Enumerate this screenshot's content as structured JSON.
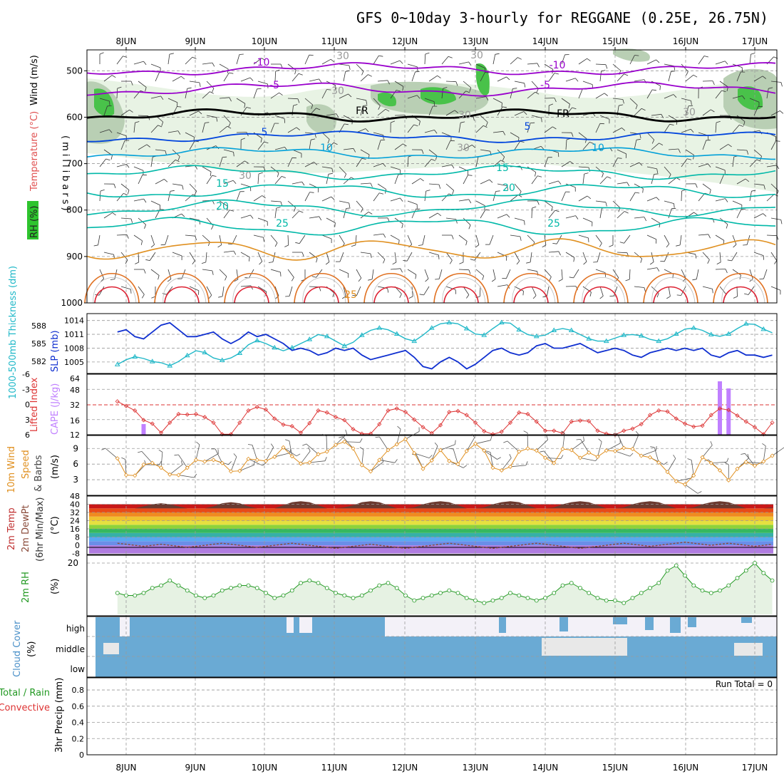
{
  "title": "GFS 0~10day 3-hourly for REGGANE (0.25E, 26.75N)",
  "date_labels": [
    "8JUN",
    "9JUN",
    "10JUN",
    "11JUN",
    "12JUN",
    "13JUN",
    "14JUN",
    "15JUN",
    "16JUN",
    "17JUN"
  ],
  "colors": {
    "temp_cold": "#9900cc",
    "temp_blue": "#0044dd",
    "temp_cyan": "#00a0d8",
    "temp_teal": "#00b8a8",
    "temp_orange": "#e09020",
    "temp_red": "#dd2233",
    "slp": "#1030d0",
    "thickness": "#20b8c8",
    "li": "#dd3333",
    "cape": "#c080ff",
    "wind10": "#e09020",
    "rh": "#229922",
    "rh_fill": "#e6f2e3",
    "cloud": "#6aaad4",
    "cloud_bg": "#f3f1f8",
    "cloud_gap": "#e8e8e8"
  },
  "upper_panel": {
    "ylabel_rh": "RH (%)",
    "ylabel_temp": "Temperature (°C)",
    "ylabel_wind": "Wind (m/s)",
    "ylabel_units": "(millibars)",
    "y_ticks": [
      "500",
      "600",
      "700",
      "800",
      "900",
      "1000"
    ],
    "contour_labels": [
      {
        "text": "-10",
        "color": "#9900cc"
      },
      {
        "text": "-10",
        "color": "#9900cc"
      },
      {
        "text": "-5",
        "color": "#9900cc"
      },
      {
        "text": "-5",
        "color": "#9900cc"
      },
      {
        "text": "FR",
        "color": "#000000"
      },
      {
        "text": "FR",
        "color": "#000000"
      },
      {
        "text": "5",
        "color": "#0044dd"
      },
      {
        "text": "5",
        "color": "#0044dd"
      },
      {
        "text": "10",
        "color": "#00a0d8"
      },
      {
        "text": "10",
        "color": "#00a0d8"
      },
      {
        "text": "15",
        "color": "#00b8a8"
      },
      {
        "text": "15",
        "color": "#00b8a8"
      },
      {
        "text": "20",
        "color": "#00b8a8"
      },
      {
        "text": "20",
        "color": "#00b8a8"
      },
      {
        "text": "25",
        "color": "#00b8a8"
      },
      {
        "text": "25",
        "color": "#00b8a8"
      },
      {
        "text": "25",
        "color": "#e09020"
      },
      {
        "text": "30",
        "color": "#999999"
      },
      {
        "text": "30",
        "color": "#999999"
      },
      {
        "text": "30",
        "color": "#999999"
      },
      {
        "text": "30",
        "color": "#999999"
      },
      {
        "text": "30",
        "color": "#999999"
      },
      {
        "text": "30",
        "color": "#999999"
      },
      {
        "text": "30",
        "color": "#999999"
      }
    ]
  },
  "slp_panel": {
    "ylabel_thickness": "1000-500mb Thickness (dm)",
    "ylabel_slp": "SLP (mb)",
    "left_ticks": [
      "588",
      "585",
      "582"
    ],
    "right_ticks": [
      "1014",
      "1011",
      "1008",
      "1005"
    ]
  },
  "cape_panel": {
    "ylabel_li": "Lifted Index",
    "ylabel_cape": "CAPE (J/kg)",
    "left_ticks": [
      "-6",
      "-3",
      "0",
      "3",
      "6"
    ],
    "right_ticks": [
      "64",
      "48",
      "32",
      "16",
      "12"
    ]
  },
  "wind_panel": {
    "ylabel_1": "10m Wind",
    "ylabel_2": "Speed",
    "ylabel_3": "& Barbs",
    "ylabel_units": "(m/s)",
    "y_ticks": [
      "9",
      "6",
      "3"
    ]
  },
  "temp_panel": {
    "ylabel_1": "2m Temp",
    "ylabel_2": "2m DewPt",
    "ylabel_3": "(6hr Min/Max)",
    "ylabel_units": "(°C)",
    "y_ticks": [
      "48",
      "40",
      "32",
      "24",
      "16",
      "8",
      "0",
      "-8"
    ]
  },
  "rh_panel": {
    "ylabel": "2m RH",
    "ylabel_units": "(%)",
    "y_ticks": [
      "20"
    ]
  },
  "cloud_panel": {
    "ylabel": "Cloud Cover",
    "ylabel_units": "(%)",
    "level_labels": [
      "high",
      "middle",
      "low"
    ]
  },
  "precip_panel": {
    "ylabel_1": "Total / Rain",
    "ylabel_2": "Convective",
    "ylabel_3": "3hr Precip (mm)",
    "y_ticks": [
      "0.8",
      "0.6",
      "0.4",
      "0.2",
      "0"
    ],
    "run_total": "Run Total = 0"
  },
  "chart_data": {
    "type": "line",
    "x": [
      "07JUN21",
      "08JUN00",
      "08JUN03",
      "08JUN06",
      "08JUN09",
      "08JUN12",
      "08JUN15",
      "08JUN18",
      "08JUN21",
      "09JUN00",
      "09JUN03",
      "09JUN06",
      "09JUN09",
      "09JUN12",
      "09JUN15",
      "09JUN18",
      "09JUN21",
      "10JUN00",
      "10JUN03",
      "10JUN06",
      "10JUN09",
      "10JUN12",
      "10JUN15",
      "10JUN18",
      "10JUN21",
      "11JUN00",
      "11JUN03",
      "11JUN06",
      "11JUN09",
      "11JUN12",
      "11JUN15",
      "11JUN18",
      "11JUN21",
      "12JUN00",
      "12JUN03",
      "12JUN06",
      "12JUN09",
      "12JUN12",
      "12JUN15",
      "12JUN18",
      "12JUN21",
      "13JUN00",
      "13JUN03",
      "13JUN06",
      "13JUN09",
      "13JUN12",
      "13JUN15",
      "13JUN18",
      "13JUN21",
      "14JUN00",
      "14JUN03",
      "14JUN06",
      "14JUN09",
      "14JUN12",
      "14JUN15",
      "14JUN18",
      "14JUN21",
      "15JUN00",
      "15JUN03",
      "15JUN06",
      "15JUN09",
      "15JUN12",
      "15JUN15",
      "15JUN18",
      "15JUN21",
      "16JUN00",
      "16JUN03",
      "16JUN06",
      "16JUN09",
      "16JUN12",
      "16JUN15",
      "16JUN18",
      "16JUN21",
      "17JUN00",
      "17JUN03",
      "17JUN06"
    ],
    "series": [
      {
        "values": [
          1011.5,
          1012,
          1010.5,
          1010,
          1011.5,
          1013,
          1013.5,
          1012,
          1010.5,
          1010.5,
          1011,
          1011.5,
          1010,
          1009,
          1010,
          1011.5,
          1010.5,
          1011,
          1010,
          1009,
          1007.5,
          1008,
          1007.5,
          1006.5,
          1007,
          1008,
          1007.5,
          1008,
          1006.5,
          1005.5,
          1006,
          1006.5,
          1007,
          1007.5,
          1006,
          1004,
          1003.5,
          1005,
          1006,
          1005,
          1003.5,
          1004.5,
          1006,
          1007.5,
          1008,
          1007,
          1006.5,
          1007,
          1008.5,
          1009,
          1008,
          1008,
          1008.5,
          1009,
          1008,
          1007,
          1007.5,
          1008,
          1007.5,
          1006.5,
          1006,
          1007,
          1007.5,
          1008,
          1007.5,
          1008,
          1007.5,
          1008,
          1006.5,
          1006,
          1007,
          1007.5,
          1006.5,
          1006.5,
          1006,
          1006.5
        ]
      },
      {
        "values": [
          581.5,
          582.3,
          582.8,
          582.5,
          582,
          581.8,
          581.3,
          582,
          583,
          583.8,
          583.5,
          582.6,
          582.2,
          582.6,
          583.4,
          584.8,
          585.5,
          585,
          584.3,
          583.8,
          584.3,
          585,
          585.7,
          586.5,
          586.2,
          585.4,
          584.6,
          585.2,
          586.4,
          587.2,
          587.6,
          587.3,
          586.6,
          585.8,
          585.4,
          586.4,
          587.6,
          588.3,
          588.5,
          588.3,
          587.5,
          586.6,
          586.4,
          587.5,
          588.5,
          588.4,
          587.3,
          586.5,
          586.2,
          586.4,
          587.2,
          587.5,
          587.2,
          586.5,
          585.8,
          585.4,
          585.4,
          585.9,
          586.4,
          586.5,
          586.3,
          585.7,
          585.4,
          585.8,
          586.6,
          587.4,
          587.6,
          587.2,
          586.5,
          586.2,
          586.6,
          587.5,
          588.3,
          588.2,
          587.4,
          586.8
        ]
      },
      {
        "values": [
          -0.6,
          0.3,
          1.2,
          3.1,
          3.8,
          5.6,
          3.6,
          1.9,
          2.0,
          1.9,
          2.5,
          3.6,
          5.9,
          5.9,
          3.6,
          1.2,
          0.5,
          1.0,
          2.8,
          4.0,
          4.3,
          5.6,
          3.7,
          1.2,
          1.6,
          2.5,
          3.1,
          4.9,
          5.8,
          5.8,
          3.9,
          1.2,
          0.8,
          1.5,
          3.0,
          4.5,
          5.7,
          4.1,
          1.5,
          1.3,
          2.1,
          3.6,
          5.3,
          5.9,
          5.4,
          3.6,
          1.6,
          1.9,
          3.4,
          5.2,
          5.2,
          5.7,
          3.4,
          3.2,
          3.3,
          5.2,
          5.8,
          6.0,
          5.2,
          4.8,
          3.9,
          2.1,
          1.2,
          1.4,
          2.8,
          3.8,
          4.4,
          4.2,
          2.1,
          0.8,
          1.1,
          2.2,
          3.4,
          4.5,
          5.9,
          3.6
        ]
      },
      {
        "values": [
          0,
          0,
          0,
          12,
          0,
          0,
          0,
          0,
          0,
          0,
          0,
          0,
          0,
          0,
          0,
          0,
          0,
          0,
          0,
          0,
          0,
          0,
          0,
          0,
          0,
          0,
          0,
          0,
          0,
          0,
          0,
          0,
          0,
          0,
          0,
          0,
          0,
          0,
          0,
          0,
          0,
          0,
          0,
          0,
          0,
          0,
          0,
          0,
          0,
          0,
          0,
          0,
          0,
          0,
          0,
          0,
          0,
          0,
          0,
          0,
          0,
          0,
          0,
          0,
          0,
          0,
          0,
          0,
          0,
          60,
          52,
          0,
          0,
          0,
          0,
          0
        ]
      },
      {
        "values": [
          7.1,
          3.9,
          3.8,
          5.9,
          6.2,
          5.3,
          4.0,
          3.9,
          5.3,
          6.8,
          6.5,
          6.8,
          6.2,
          4.6,
          4.7,
          7.0,
          6.8,
          6.6,
          7.4,
          9.2,
          7.5,
          6.1,
          6.3,
          7.9,
          8.4,
          9.7,
          10.3,
          9.0,
          5.8,
          4.6,
          6.8,
          8.7,
          9.8,
          10.8,
          8.1,
          5.1,
          6.7,
          8.7,
          6.6,
          6.0,
          8.5,
          9.9,
          8.6,
          5.3,
          4.8,
          5.5,
          8.4,
          9.0,
          8.6,
          7.2,
          6.2,
          8.9,
          8.7,
          7.2,
          8.2,
          7.4,
          8.6,
          8.5,
          9.1,
          8.9,
          7.6,
          7.3,
          6.3,
          4.5,
          2.7,
          2.1,
          3.8,
          7.3,
          6.2,
          4.8,
          2.9,
          5.1,
          6.4,
          5.7,
          6.5,
          7.6
        ]
      },
      {
        "values": [
          36,
          35,
          36,
          38,
          40,
          41,
          40,
          38,
          35,
          34,
          36,
          38,
          41,
          42,
          41,
          38,
          35,
          34,
          36,
          39,
          42,
          43,
          42,
          39,
          36,
          35,
          37,
          39,
          42,
          43,
          42,
          39,
          36,
          35,
          37,
          40,
          42,
          43,
          42,
          39,
          36,
          35,
          37,
          40,
          42,
          43,
          42,
          39,
          36,
          35,
          37,
          40,
          42,
          43,
          42,
          39,
          36,
          35,
          37,
          40,
          42,
          43,
          42,
          39,
          36,
          35,
          37,
          40,
          42,
          43,
          42,
          39,
          36,
          35,
          36,
          37
        ]
      },
      {
        "values": [
          2,
          1,
          0,
          -1,
          0,
          1,
          0,
          -1,
          -2,
          -1,
          0,
          1,
          2,
          1,
          0,
          -1,
          -2,
          -1,
          0,
          1,
          2,
          1,
          0,
          -1,
          -2,
          -3,
          -2,
          -1,
          0,
          1,
          0,
          -1,
          -2,
          -3,
          -2,
          -1,
          0,
          1,
          2,
          1,
          0,
          -1,
          -2,
          -3,
          -2,
          -1,
          0,
          1,
          2,
          1,
          0,
          -1,
          -2,
          -3,
          -2,
          -1,
          0,
          1,
          2,
          1,
          0,
          -1,
          0,
          1,
          2,
          3,
          2,
          1,
          0,
          1,
          2,
          1,
          0,
          -1,
          0,
          1
        ]
      },
      {
        "values": [
          8,
          7,
          7,
          8,
          10,
          11,
          13,
          11,
          9,
          7,
          6,
          7,
          9,
          10,
          11,
          11,
          10,
          8,
          6,
          7,
          9,
          12,
          13,
          12,
          10,
          8,
          7,
          6,
          7,
          9,
          11,
          12,
          10,
          7,
          5,
          6,
          7,
          8,
          9,
          8,
          6,
          5,
          4,
          5,
          6,
          8,
          7,
          6,
          5,
          6,
          8,
          11,
          12,
          10,
          8,
          6,
          5,
          5,
          4,
          6,
          8,
          10,
          12,
          17,
          19,
          15,
          11,
          9,
          8,
          9,
          11,
          14,
          17,
          20,
          16,
          13
        ]
      },
      {
        "values": [
          0,
          0,
          0,
          0,
          0,
          0,
          0,
          0,
          0,
          0,
          0,
          0,
          0,
          0,
          0,
          0,
          0,
          0,
          0,
          0,
          0,
          0,
          0,
          0,
          0,
          0,
          0,
          0,
          0,
          0,
          0,
          0,
          0,
          0,
          0,
          0,
          0,
          0,
          0,
          0,
          0,
          0,
          0,
          0,
          0,
          0,
          0,
          0,
          0,
          0,
          0,
          0,
          0,
          0,
          0,
          0,
          0,
          0,
          0,
          0,
          0,
          0,
          0,
          0,
          0,
          0,
          0,
          0,
          0,
          0,
          0,
          0,
          0,
          0,
          0,
          0
        ]
      }
    ]
  }
}
